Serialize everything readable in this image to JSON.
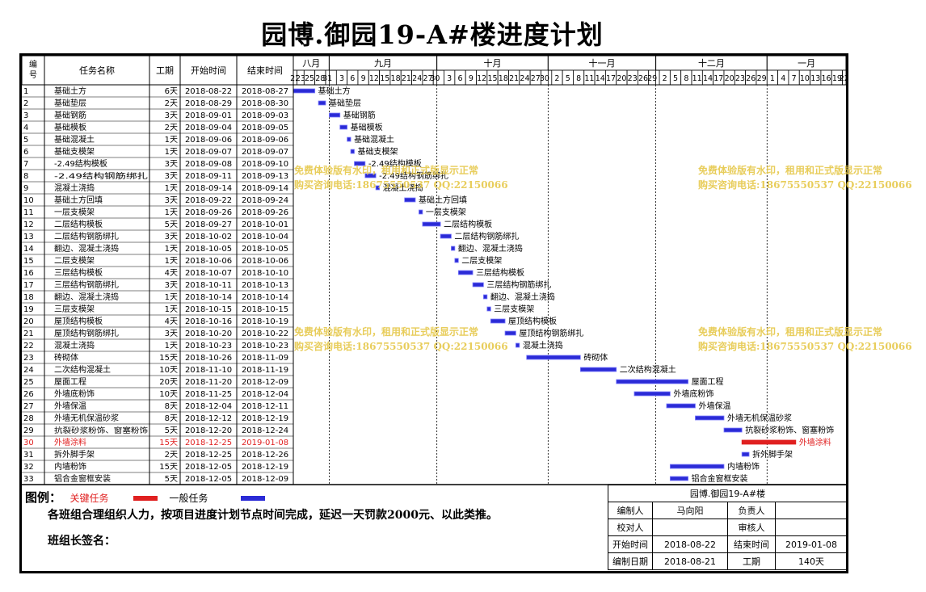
{
  "title": "园博.御园19-A#楼进度计划",
  "header": {
    "id": "编号",
    "name": "任务名称",
    "dur": "工期",
    "start": "开始时间",
    "end": "结束时间"
  },
  "months": [
    {
      "label": "八月",
      "days": [
        "22",
        "23",
        "25",
        "28",
        "31"
      ]
    },
    {
      "label": "九月",
      "days": [
        "3",
        "6",
        "9",
        "12",
        "15",
        "18",
        "21",
        "24",
        "27",
        "30"
      ]
    },
    {
      "label": "十月",
      "days": [
        "3",
        "6",
        "9",
        "12",
        "15",
        "18",
        "21",
        "24",
        "27",
        "30"
      ]
    },
    {
      "label": "十一月",
      "days": [
        "2",
        "5",
        "8",
        "11",
        "14",
        "17",
        "20",
        "23",
        "26",
        "29"
      ]
    },
    {
      "label": "十二月",
      "days": [
        "2",
        "5",
        "8",
        "11",
        "14",
        "17",
        "20",
        "23",
        "26",
        "29"
      ]
    },
    {
      "label": "一月",
      "days": [
        "1",
        "4",
        "7",
        "10",
        "13",
        "16",
        "19",
        "22"
      ]
    }
  ],
  "chart_data": {
    "type": "gantt",
    "timeline_start": "2018-08-22",
    "timeline_end": "2019-01-22",
    "tasks": [
      {
        "id": "1",
        "name": "基础土方",
        "dur": "6天",
        "start": "2018-08-22",
        "end": "2018-08-27",
        "critical": false
      },
      {
        "id": "2",
        "name": "基础垫层",
        "dur": "2天",
        "start": "2018-08-29",
        "end": "2018-08-30",
        "critical": false
      },
      {
        "id": "3",
        "name": "基础钢筋",
        "dur": "3天",
        "start": "2018-09-01",
        "end": "2018-09-03",
        "critical": false
      },
      {
        "id": "4",
        "name": "基础模板",
        "dur": "2天",
        "start": "2018-09-04",
        "end": "2018-09-05",
        "critical": false
      },
      {
        "id": "5",
        "name": "基础混凝土",
        "dur": "1天",
        "start": "2018-09-06",
        "end": "2018-09-06",
        "critical": false
      },
      {
        "id": "6",
        "name": "基础支模架",
        "dur": "1天",
        "start": "2018-09-07",
        "end": "2018-09-07",
        "critical": false
      },
      {
        "id": "7",
        "name": "-2.49结构模板",
        "dur": "3天",
        "start": "2018-09-08",
        "end": "2018-09-10",
        "critical": false
      },
      {
        "id": "8",
        "name": "-2.49结构钢筋绑扎",
        "dur": "3天",
        "start": "2018-09-11",
        "end": "2018-09-13",
        "critical": false
      },
      {
        "id": "9",
        "name": "混凝土浇捣",
        "dur": "1天",
        "start": "2018-09-14",
        "end": "2018-09-14",
        "critical": false
      },
      {
        "id": "10",
        "name": "基础土方回填",
        "dur": "3天",
        "start": "2018-09-22",
        "end": "2018-09-24",
        "critical": false
      },
      {
        "id": "11",
        "name": "一层支模架",
        "dur": "1天",
        "start": "2018-09-26",
        "end": "2018-09-26",
        "critical": false
      },
      {
        "id": "12",
        "name": "二层结构模板",
        "dur": "5天",
        "start": "2018-09-27",
        "end": "2018-10-01",
        "critical": false
      },
      {
        "id": "13",
        "name": "二层结构钢筋绑扎",
        "dur": "3天",
        "start": "2018-10-02",
        "end": "2018-10-04",
        "critical": false
      },
      {
        "id": "14",
        "name": "翻边、混凝土浇捣",
        "dur": "1天",
        "start": "2018-10-05",
        "end": "2018-10-05",
        "critical": false
      },
      {
        "id": "15",
        "name": "二层支模架",
        "dur": "1天",
        "start": "2018-10-06",
        "end": "2018-10-06",
        "critical": false
      },
      {
        "id": "16",
        "name": "三层结构模板",
        "dur": "4天",
        "start": "2018-10-07",
        "end": "2018-10-10",
        "critical": false
      },
      {
        "id": "17",
        "name": "三层结构钢筋绑扎",
        "dur": "3天",
        "start": "2018-10-11",
        "end": "2018-10-13",
        "critical": false
      },
      {
        "id": "18",
        "name": "翻边、混凝土浇捣",
        "dur": "1天",
        "start": "2018-10-14",
        "end": "2018-10-14",
        "critical": false
      },
      {
        "id": "19",
        "name": "三层支模架",
        "dur": "1天",
        "start": "2018-10-15",
        "end": "2018-10-15",
        "critical": false
      },
      {
        "id": "20",
        "name": "屋顶结构模板",
        "dur": "4天",
        "start": "2018-10-16",
        "end": "2018-10-19",
        "critical": false
      },
      {
        "id": "21",
        "name": "屋顶结构钢筋绑扎",
        "dur": "3天",
        "start": "2018-10-20",
        "end": "2018-10-22",
        "critical": false
      },
      {
        "id": "22",
        "name": "混凝土浇捣",
        "dur": "1天",
        "start": "2018-10-23",
        "end": "2018-10-23",
        "critical": false
      },
      {
        "id": "23",
        "name": "砖砌体",
        "dur": "15天",
        "start": "2018-10-26",
        "end": "2018-11-09",
        "critical": false
      },
      {
        "id": "24",
        "name": "二次结构混凝土",
        "dur": "10天",
        "start": "2018-11-10",
        "end": "2018-11-19",
        "critical": false
      },
      {
        "id": "25",
        "name": "屋面工程",
        "dur": "20天",
        "start": "2018-11-20",
        "end": "2018-12-09",
        "critical": false
      },
      {
        "id": "26",
        "name": "外墙底粉饰",
        "dur": "10天",
        "start": "2018-11-25",
        "end": "2018-12-04",
        "critical": false
      },
      {
        "id": "27",
        "name": "外墙保温",
        "dur": "8天",
        "start": "2018-12-04",
        "end": "2018-12-11",
        "critical": false
      },
      {
        "id": "28",
        "name": "外墙无机保温砂浆",
        "dur": "8天",
        "start": "2018-12-12",
        "end": "2018-12-19",
        "critical": false
      },
      {
        "id": "29",
        "name": "抗裂砂浆粉饰、窗塞粉饰",
        "dur": "5天",
        "start": "2018-12-20",
        "end": "2018-12-24",
        "critical": false
      },
      {
        "id": "30",
        "name": "外墙涂料",
        "dur": "15天",
        "start": "2018-12-25",
        "end": "2019-01-08",
        "critical": true
      },
      {
        "id": "31",
        "name": "拆外脚手架",
        "dur": "2天",
        "start": "2018-12-25",
        "end": "2018-12-26",
        "critical": false
      },
      {
        "id": "32",
        "name": "内墙粉饰",
        "dur": "15天",
        "start": "2018-12-05",
        "end": "2018-12-19",
        "critical": false
      },
      {
        "id": "33",
        "name": "铝合金窗框安装",
        "dur": "5天",
        "start": "2018-12-05",
        "end": "2018-12-09",
        "critical": false
      }
    ]
  },
  "legend": {
    "label": "图例：",
    "critical": "关键任务",
    "normal": "一般任务"
  },
  "note": "各班组合理组织人力，按项目进度计划节点时间完成，延迟一天罚款2000元、以此类推。",
  "sign": "班组长签名：",
  "info": {
    "project": "园博.御园19-A#楼",
    "compiler_label": "编制人",
    "compiler": "马向阳",
    "owner_label": "负责人",
    "owner": "",
    "checker_label": "校对人",
    "checker": "",
    "reviewer_label": "审核人",
    "reviewer": "",
    "start_label": "开始时间",
    "start": "2018-08-22",
    "end_label": "结束时间",
    "end": "2019-01-08",
    "date_label": "编制日期",
    "date": "2018-08-21",
    "dur_label": "工期",
    "dur": "140天"
  },
  "watermark": {
    "line1": "免费体验版有水印，租用和正式版显示正常",
    "line2": "购买咨询电话:18675550537 QQ:22150066"
  },
  "colors": {
    "normal_bar": "#2b2bd6",
    "critical_bar": "#e02020",
    "critical_text": "#e02020",
    "watermark": "#e6c84a"
  }
}
